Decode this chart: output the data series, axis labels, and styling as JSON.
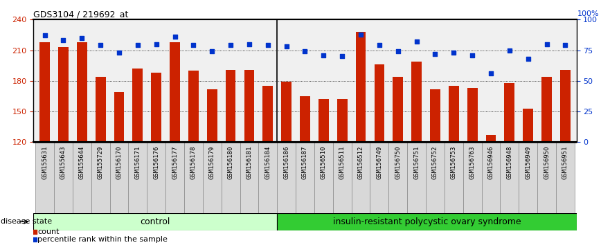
{
  "title": "GDS3104 / 219692_at",
  "samples": [
    "GSM155631",
    "GSM155643",
    "GSM155644",
    "GSM155729",
    "GSM156170",
    "GSM156171",
    "GSM156176",
    "GSM156177",
    "GSM156178",
    "GSM156179",
    "GSM156180",
    "GSM156181",
    "GSM156184",
    "GSM156186",
    "GSM156187",
    "GSM156510",
    "GSM156511",
    "GSM156512",
    "GSM156749",
    "GSM156750",
    "GSM156751",
    "GSM156752",
    "GSM156753",
    "GSM156763",
    "GSM156946",
    "GSM156948",
    "GSM156949",
    "GSM156950",
    "GSM156951"
  ],
  "bar_values": [
    218,
    213,
    218,
    184,
    169,
    192,
    188,
    218,
    190,
    172,
    191,
    191,
    175,
    179,
    165,
    162,
    162,
    228,
    196,
    184,
    199,
    172,
    175,
    173,
    127,
    178,
    153,
    184,
    191
  ],
  "dot_values": [
    87,
    83,
    85,
    79,
    73,
    79,
    80,
    86,
    79,
    74,
    79,
    80,
    79,
    78,
    74,
    71,
    70,
    88,
    79,
    74,
    82,
    72,
    73,
    71,
    56,
    75,
    68,
    80,
    79
  ],
  "control_count": 13,
  "ylim_left": [
    120,
    240
  ],
  "ylim_right": [
    0,
    100
  ],
  "yticks_left": [
    120,
    150,
    180,
    210,
    240
  ],
  "yticks_right": [
    0,
    25,
    50,
    75,
    100
  ],
  "bar_color": "#cc2200",
  "dot_color": "#0033cc",
  "bg_color": "#f0f0f0",
  "control_label": "control",
  "disease_label": "insulin-resistant polycystic ovary syndrome",
  "legend_bar": "count",
  "legend_dot": "percentile rank within the sample",
  "disease_state_label": "disease state",
  "control_bg": "#ccffcc",
  "disease_bg": "#33cc33"
}
